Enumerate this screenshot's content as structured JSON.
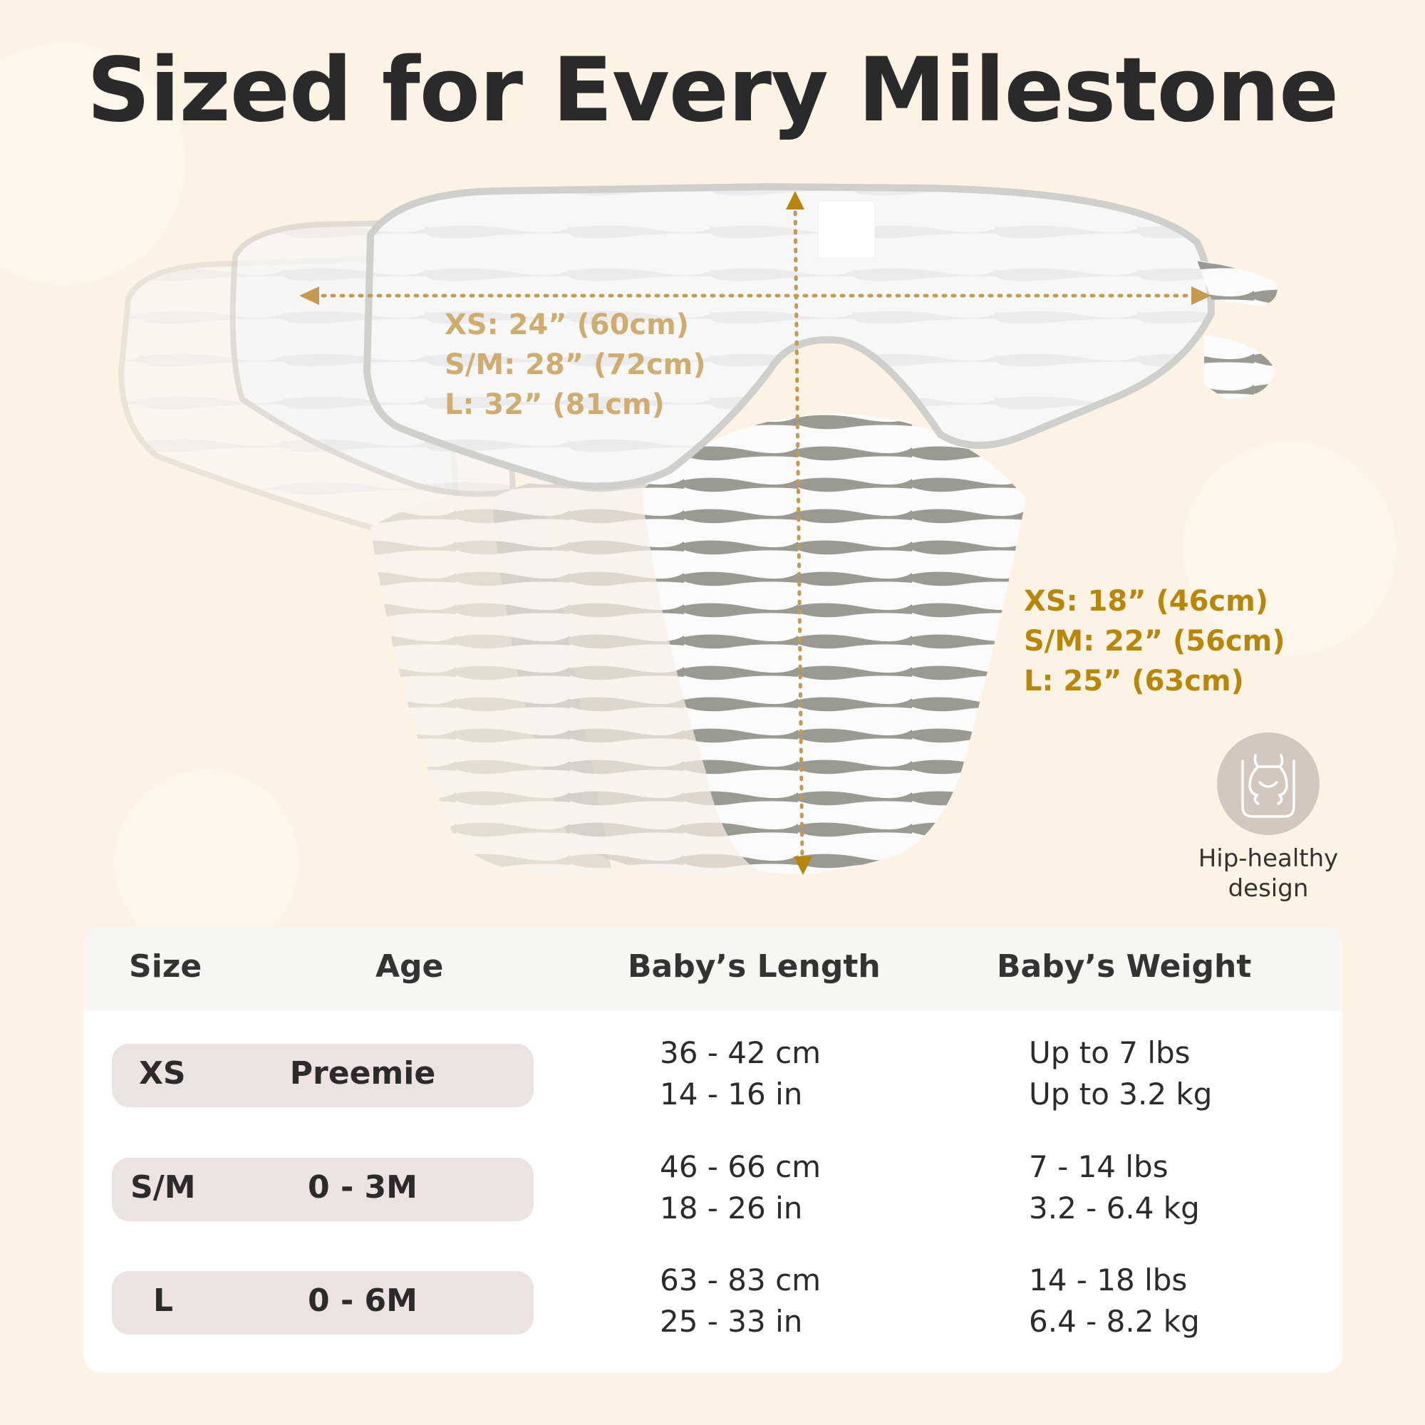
{
  "title": "Sized for Every Milestone",
  "colors": {
    "background": "#fdf3e5",
    "width_label": "#cfac70",
    "length_label": "#b8860b",
    "pill": "#ede2e2",
    "stripe": "#9a9a92"
  },
  "dimensions": {
    "width": [
      "XS: 24” (60cm)",
      "S/M: 28” (72cm)",
      "L: 32” (81cm)"
    ],
    "length": [
      "XS: 18” (46cm)",
      "S/M: 22” (56cm)",
      "L: 25” (63cm)"
    ]
  },
  "feature": {
    "icon": "hip-icon",
    "line1": "Hip-healthy",
    "line2": "design"
  },
  "table": {
    "headers": [
      "Size",
      "Age",
      "Baby’s Length",
      "Baby’s Weight"
    ],
    "rows": [
      {
        "size": "XS",
        "age": "Preemie",
        "length": [
          "36 - 42 cm",
          "14 - 16 in"
        ],
        "weight": [
          "Up to 7 lbs",
          "Up to 3.2 kg"
        ]
      },
      {
        "size": "S/M",
        "age": "0 - 3M",
        "length": [
          "46 - 66 cm",
          "18 - 26 in"
        ],
        "weight": [
          "7 - 14 lbs",
          "3.2 - 6.4 kg"
        ]
      },
      {
        "size": "L",
        "age": "0 - 6M",
        "length": [
          "63 - 83 cm",
          "25 - 33 in"
        ],
        "weight": [
          "14 - 18 lbs",
          "6.4 - 8.2 kg"
        ]
      }
    ]
  }
}
